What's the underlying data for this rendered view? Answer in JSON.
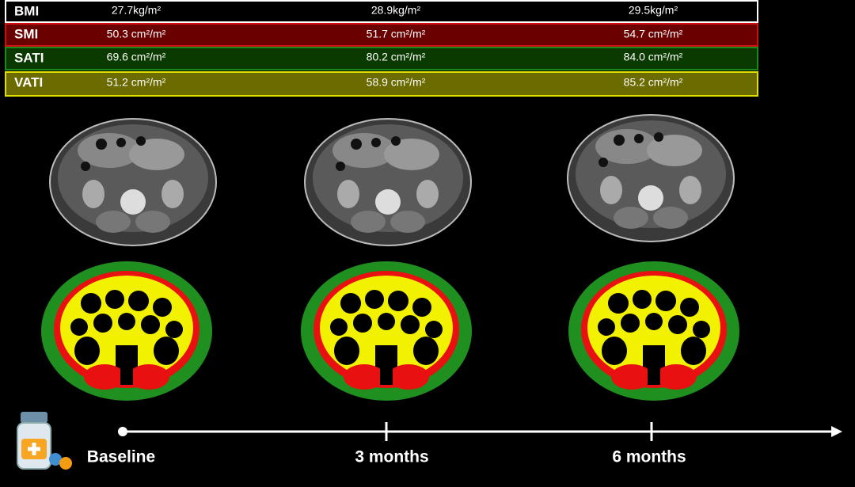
{
  "table": {
    "rows": [
      [
        "BMI",
        "27.7kg/m²",
        "28.9kg/m²",
        "29.5kg/m²"
      ],
      [
        "SMI",
        "50.3 cm²/m²",
        "51.7 cm²/m²",
        "54.7 cm²/m²"
      ],
      [
        "SATI",
        "69.6 cm²/m²",
        "80.2 cm²/m²",
        "84.0 cm²/m²"
      ],
      [
        "VATI",
        "51.2 cm²/m²",
        "58.9 cm²/m²",
        "85.2 cm²/m²"
      ]
    ]
  },
  "timeline": {
    "labels": [
      "Baseline",
      "3 months",
      "6 months"
    ]
  }
}
